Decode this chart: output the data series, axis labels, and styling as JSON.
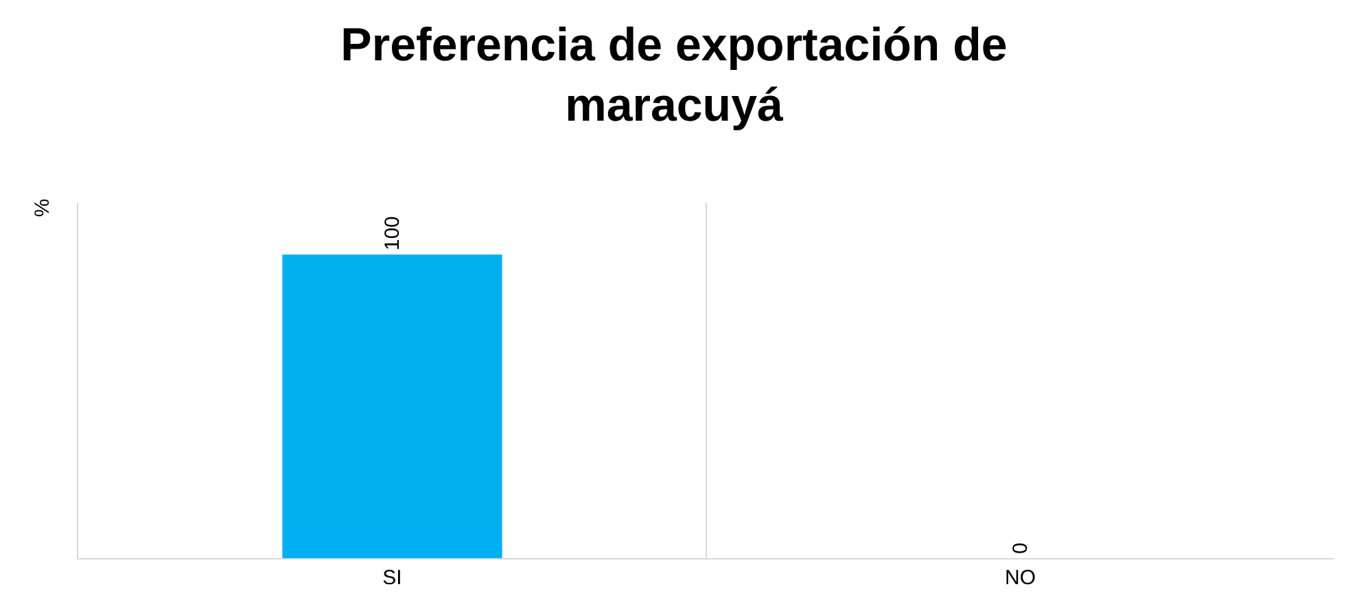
{
  "chart_data": {
    "type": "bar",
    "title": "Preferencia de exportación de\nmaracuyá",
    "ylabel": "%",
    "categories": [
      "SI",
      "NO"
    ],
    "series": [
      {
        "color": "#00b0f0",
        "values": [
          100,
          0
        ],
        "value_labels": [
          "100",
          "0"
        ]
      }
    ],
    "ylim": [
      0,
      117
    ],
    "grid": "x"
  }
}
